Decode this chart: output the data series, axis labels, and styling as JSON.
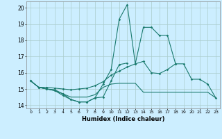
{
  "xlabel": "Humidex (Indice chaleur)",
  "ylim": [
    13.8,
    20.4
  ],
  "xlim": [
    -0.5,
    23.5
  ],
  "yticks": [
    14,
    15,
    16,
    17,
    18,
    19,
    20
  ],
  "bg_color": "#cceeff",
  "line_color": "#1a7a6e",
  "grid_color": "#aacccc",
  "line1_y": [
    15.5,
    15.1,
    15.0,
    14.9,
    14.6,
    14.35,
    14.2,
    14.2,
    14.45,
    14.5,
    15.5,
    16.5,
    16.6,
    null,
    null,
    null,
    null,
    null,
    null,
    null,
    null,
    null,
    null,
    null
  ],
  "line2_y": [
    15.5,
    15.1,
    15.0,
    14.95,
    14.7,
    14.5,
    14.5,
    14.5,
    14.65,
    15.1,
    15.3,
    15.35,
    15.35,
    15.35,
    14.8,
    14.8,
    14.8,
    14.8,
    14.8,
    14.8,
    14.8,
    14.8,
    14.8,
    14.45
  ],
  "line3_y": [
    15.5,
    15.1,
    15.1,
    15.05,
    15.0,
    14.95,
    15.0,
    15.05,
    15.2,
    15.45,
    15.85,
    16.1,
    16.35,
    16.55,
    16.7,
    16.0,
    15.95,
    16.2,
    16.55,
    16.55,
    15.6,
    15.6,
    15.3,
    14.45
  ],
  "line4_y": [
    15.5,
    15.1,
    15.0,
    14.9,
    14.7,
    14.35,
    14.2,
    14.2,
    14.45,
    15.3,
    16.2,
    19.3,
    20.2,
    16.55,
    18.8,
    18.8,
    18.3,
    18.3,
    16.55,
    null,
    null,
    null,
    null,
    null
  ]
}
